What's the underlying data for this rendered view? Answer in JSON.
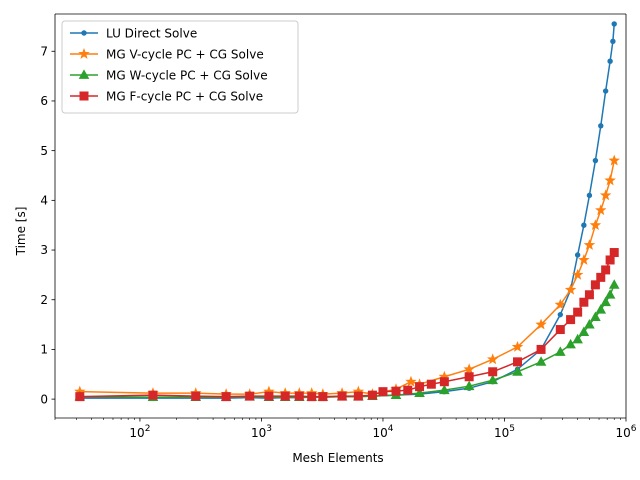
{
  "chart_data": {
    "type": "line",
    "xlabel": "Mesh Elements",
    "ylabel": "Time [s]",
    "xscale": "log",
    "xlim": [
      20,
      1000000
    ],
    "ylim": [
      -0.38,
      7.75
    ],
    "x_ticks": [
      {
        "value": 100,
        "base": "10",
        "exp": "2"
      },
      {
        "value": 1000,
        "base": "10",
        "exp": "3"
      },
      {
        "value": 10000,
        "base": "10",
        "exp": "4"
      },
      {
        "value": 100000,
        "base": "10",
        "exp": "5"
      },
      {
        "value": 1000000,
        "base": "10",
        "exp": "6"
      }
    ],
    "y_ticks": [
      {
        "value": 0,
        "label": "0"
      },
      {
        "value": 1,
        "label": "1"
      },
      {
        "value": 2,
        "label": "2"
      },
      {
        "value": 3,
        "label": "3"
      },
      {
        "value": 4,
        "label": "4"
      },
      {
        "value": 5,
        "label": "5"
      },
      {
        "value": 6,
        "label": "6"
      },
      {
        "value": 7,
        "label": "7"
      }
    ],
    "legend_position": "top-left",
    "series": [
      {
        "name": "LU Direct Solve",
        "color": "#1f77b4",
        "marker": "circle",
        "x": [
          32,
          128,
          288,
          512,
          800,
          1152,
          1568,
          2048,
          2592,
          3200,
          4608,
          6272,
          8192,
          12800,
          20000,
          32000,
          51200,
          80000,
          128000,
          200000,
          288000,
          350000,
          400000,
          450000,
          500000,
          560000,
          620000,
          680000,
          740000,
          780000,
          800000
        ],
        "y": [
          0.02,
          0.02,
          0.02,
          0.02,
          0.03,
          0.02,
          0.03,
          0.03,
          0.04,
          0.04,
          0.05,
          0.05,
          0.06,
          0.08,
          0.1,
          0.15,
          0.22,
          0.35,
          0.6,
          1.0,
          1.7,
          2.2,
          2.9,
          3.5,
          4.1,
          4.8,
          5.5,
          6.2,
          6.8,
          7.2,
          7.55
        ]
      },
      {
        "name": "MG V-cycle PC + CG Solve",
        "color": "#ff7f0e",
        "marker": "star",
        "x": [
          32,
          128,
          288,
          512,
          800,
          1152,
          1568,
          2048,
          2592,
          3200,
          4608,
          6272,
          8192,
          12800,
          17000,
          20000,
          32000,
          51200,
          80000,
          128000,
          200000,
          288000,
          350000,
          400000,
          450000,
          500000,
          560000,
          620000,
          680000,
          740000,
          800000
        ],
        "y": [
          0.15,
          0.12,
          0.12,
          0.1,
          0.1,
          0.15,
          0.12,
          0.12,
          0.12,
          0.1,
          0.12,
          0.15,
          0.1,
          0.2,
          0.35,
          0.3,
          0.45,
          0.6,
          0.8,
          1.05,
          1.5,
          1.9,
          2.2,
          2.5,
          2.8,
          3.1,
          3.5,
          3.8,
          4.1,
          4.4,
          4.8
        ]
      },
      {
        "name": "MG W-cycle PC + CG Solve",
        "color": "#2ca02c",
        "marker": "triangle",
        "x": [
          32,
          128,
          288,
          512,
          800,
          1152,
          1568,
          2048,
          2592,
          3200,
          4608,
          6272,
          8192,
          12800,
          20000,
          32000,
          51200,
          80000,
          128000,
          200000,
          288000,
          350000,
          400000,
          450000,
          500000,
          560000,
          620000,
          680000,
          740000,
          800000
        ],
        "y": [
          0.05,
          0.04,
          0.04,
          0.04,
          0.05,
          0.04,
          0.04,
          0.04,
          0.04,
          0.04,
          0.05,
          0.05,
          0.06,
          0.08,
          0.12,
          0.18,
          0.26,
          0.38,
          0.55,
          0.75,
          0.95,
          1.1,
          1.2,
          1.35,
          1.5,
          1.65,
          1.8,
          1.95,
          2.1,
          2.3
        ]
      },
      {
        "name": "MG F-cycle PC + CG Solve",
        "color": "#d62728",
        "marker": "square",
        "x": [
          32,
          128,
          288,
          512,
          800,
          1152,
          1568,
          2048,
          2592,
          3200,
          4608,
          6272,
          8192,
          10000,
          12800,
          16000,
          20000,
          25000,
          32000,
          51200,
          80000,
          128000,
          200000,
          288000,
          350000,
          400000,
          450000,
          500000,
          560000,
          620000,
          680000,
          740000,
          800000
        ],
        "y": [
          0.05,
          0.08,
          0.06,
          0.05,
          0.06,
          0.06,
          0.06,
          0.06,
          0.05,
          0.05,
          0.06,
          0.06,
          0.08,
          0.15,
          0.16,
          0.18,
          0.25,
          0.3,
          0.35,
          0.45,
          0.55,
          0.75,
          1.0,
          1.4,
          1.6,
          1.75,
          1.95,
          2.1,
          2.3,
          2.45,
          2.6,
          2.8,
          2.95
        ]
      }
    ]
  }
}
